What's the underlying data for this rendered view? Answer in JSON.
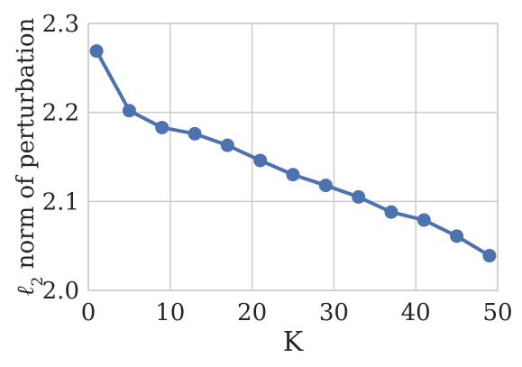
{
  "chart_data": {
    "type": "line",
    "title": "",
    "xlabel": "K",
    "ylabel": "ℓ2 norm of perturbation",
    "ylabel_parts": {
      "symbol": "ℓ",
      "subscript": "2",
      "rest": " norm of perturbation"
    },
    "x": [
      1,
      5,
      9,
      13,
      17,
      21,
      25,
      29,
      33,
      37,
      41,
      45,
      49
    ],
    "series": [
      {
        "values": [
          2.269,
          2.202,
          2.183,
          2.176,
          2.163,
          2.146,
          2.13,
          2.118,
          2.105,
          2.088,
          2.079,
          2.061,
          2.039
        ]
      }
    ],
    "xlim": [
      0,
      50
    ],
    "ylim": [
      2.0,
      2.3
    ],
    "xticks": [
      0,
      10,
      20,
      30,
      40,
      50
    ],
    "yticks": [
      2.0,
      2.1,
      2.2,
      2.3
    ],
    "xtick_labels": [
      "0",
      "10",
      "20",
      "30",
      "40",
      "50"
    ],
    "ytick_labels": [
      "2.0",
      "2.1",
      "2.2",
      "2.3"
    ],
    "grid": true,
    "legend": "none",
    "colors": {
      "line": "#4c72b0",
      "grid": "#cccccc",
      "text": "#262626"
    }
  }
}
